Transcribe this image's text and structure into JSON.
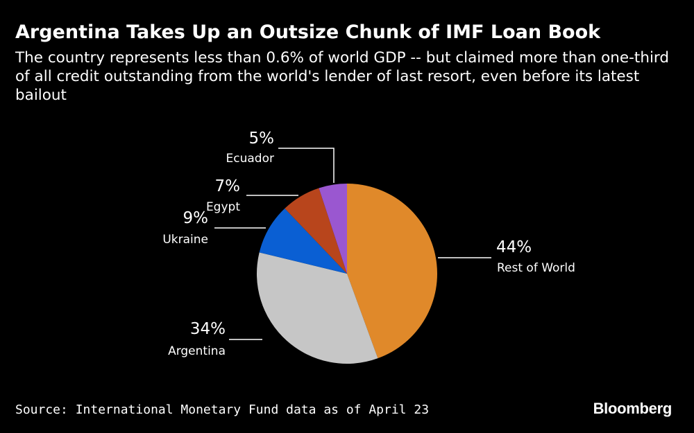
{
  "header": {
    "title": "Argentina Takes Up an Outsize Chunk of IMF Loan Book",
    "subtitle": "The country represents less than 0.6% of world GDP -- but claimed more than one-third of all credit outstanding from the world's lender of last resort, even before its latest bailout"
  },
  "footer": {
    "source": "Source: International Monetary Fund data as of April 23",
    "brand": "Bloomberg"
  },
  "chart_data": {
    "type": "pie",
    "title": "Argentina Takes Up an Outsize Chunk of IMF Loan Book",
    "legend": "none",
    "slices": [
      {
        "label": "Rest of World",
        "value": 44,
        "display": "44%",
        "color": "#e0892a"
      },
      {
        "label": "Argentina",
        "value": 34,
        "display": "34%",
        "color": "#c6c6c6"
      },
      {
        "label": "Ukraine",
        "value": 9,
        "display": "9%",
        "color": "#0a5fd3"
      },
      {
        "label": "Egypt",
        "value": 7,
        "display": "7%",
        "color": "#b8451c"
      },
      {
        "label": "Ecuador",
        "value": 5,
        "display": "5%",
        "color": "#9a57d0"
      }
    ]
  }
}
